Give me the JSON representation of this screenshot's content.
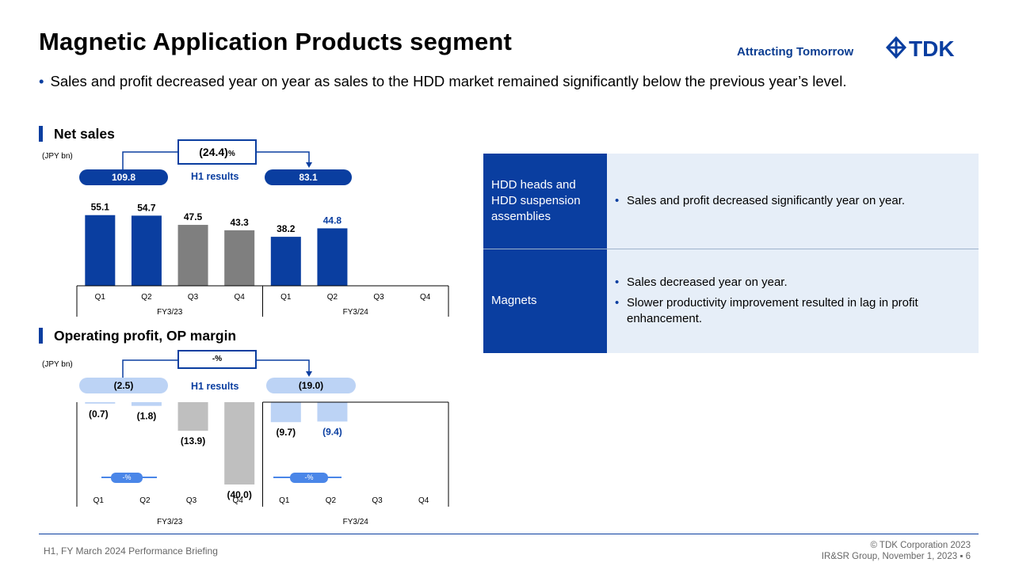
{
  "header": {
    "title": "Magnetic Application Products segment",
    "tagline": "Attracting Tomorrow",
    "logo_text": "TDK"
  },
  "summary_bullet": "Sales and profit decreased year on year as sales to the HDD market remained significantly below the previous year’s level.",
  "net_sales": {
    "heading": "Net sales",
    "unit": "(JPY bn)",
    "change": "(24.4)",
    "change_suffix": "%",
    "h1_prev": "109.8",
    "h1_curr": "83.1",
    "h1_label": "H1  results"
  },
  "op_profit": {
    "heading": "Operating profit, OP margin",
    "unit": "(JPY bn)",
    "change": "-%",
    "h1_prev": "(2.5)",
    "h1_curr": "(19.0)",
    "h1_label": "H1  results",
    "margin_fy23": "-%",
    "margin_fy24": "-%"
  },
  "chart_data": [
    {
      "type": "bar",
      "title": "Net sales",
      "unit": "(JPY bn)",
      "categories": [
        "Q1",
        "Q2",
        "Q3",
        "Q4",
        "Q1",
        "Q2",
        "Q3",
        "Q4"
      ],
      "groups": [
        "FY3/23",
        "FY3/24"
      ],
      "values": [
        55.1,
        54.7,
        47.5,
        43.3,
        38.2,
        44.8,
        null,
        null
      ],
      "labels": [
        "55.1",
        "54.7",
        "47.5",
        "43.3",
        "38.2",
        "44.8",
        "",
        ""
      ],
      "colors": [
        "#0a3ea0",
        "#0a3ea0",
        "#7f7f7f",
        "#7f7f7f",
        "#0a3ea0",
        "#0a3ea0",
        "",
        ""
      ],
      "label_colors": [
        "#000000",
        "#000000",
        "#000000",
        "#000000",
        "#000000",
        "#0a3ea0",
        "",
        ""
      ]
    },
    {
      "type": "bar",
      "title": "Operating profit, OP margin",
      "unit": "(JPY bn)",
      "categories": [
        "Q1",
        "Q2",
        "Q3",
        "Q4",
        "Q1",
        "Q2",
        "Q3",
        "Q4"
      ],
      "groups": [
        "FY3/23",
        "FY3/24"
      ],
      "values": [
        -0.7,
        -1.8,
        -13.9,
        -40.0,
        -9.7,
        -9.4,
        null,
        null
      ],
      "labels": [
        "(0.7)",
        "(1.8)",
        "(13.9)",
        "(40.0)",
        "(9.7)",
        "(9.4)",
        "",
        ""
      ],
      "colors": [
        "#bcd3f5",
        "#bcd3f5",
        "#bfbfbf",
        "#bfbfbf",
        "#bcd3f5",
        "#bcd3f5",
        "",
        ""
      ],
      "label_colors": [
        "#000000",
        "#000000",
        "#000000",
        "#000000",
        "#000000",
        "#0a3ea0",
        "",
        ""
      ]
    }
  ],
  "table": {
    "rows": [
      {
        "segment": "HDD heads and HDD suspension assemblies",
        "points": [
          "Sales and profit decreased significantly year on year."
        ]
      },
      {
        "segment": "Magnets",
        "points": [
          "Sales decreased year on year.",
          "Slower productivity improvement resulted in lag in profit enhancement."
        ]
      }
    ]
  },
  "footer": {
    "left": "H1, FY March 2024 Performance Briefing",
    "copyright": "© TDK Corporation 2023",
    "group": "IR&SR Group, November 1, 2023",
    "page": "6"
  },
  "colors": {
    "accent": "#0a3ea0",
    "light_accent": "#bcd3f5",
    "gray": "#7f7f7f",
    "light_gray": "#bfbfbf",
    "table_bg": "#e6eef8"
  }
}
